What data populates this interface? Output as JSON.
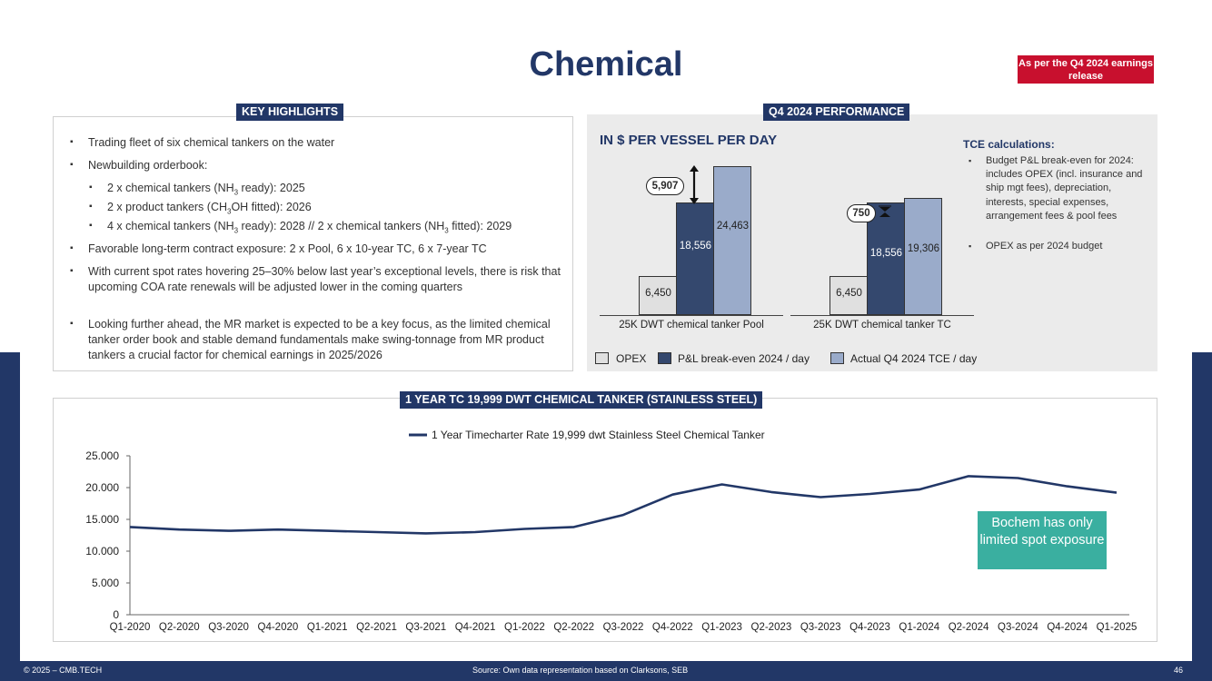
{
  "title": "Chemical",
  "badge": "As per the Q4 2024 earnings release",
  "key_highlights": {
    "tag": "KEY HIGHLIGHTS",
    "items": [
      "Trading fleet of six chemical tankers on the water",
      "Newbuilding orderbook:",
      "Favorable long-term contract exposure: 2 x Pool, 6 x 10-year TC, 6 x 7-year TC",
      "With current spot rates hovering 25–30% below last year’s exceptional levels, there is risk that upcoming COA rate renewals will be adjusted lower in the coming quarters",
      "Looking further ahead, the MR market is expected to be a key focus, as the limited chemical tanker order book and stable demand fundamentals make swing-tonnage from MR product tankers a crucial factor for chemical earnings in 2025/2026"
    ],
    "sub_items": {
      "a_pre": "2 x chemical tankers (NH",
      "a_sub": "3",
      "a_post": " ready): 2025",
      "b_pre": "2 x product tankers (CH",
      "b_sub": "3",
      "b_post": "OH fitted): 2026",
      "c_pre": "4 x chemical tankers (NH",
      "c_sub": "3",
      "c_mid": " ready): 2028 // 2 x chemical tankers (NH",
      "c_sub2": "3",
      "c_post": " fitted): 2029"
    }
  },
  "performance": {
    "tag": "Q4 2024 PERFORMANCE",
    "chart_title": "IN $ PER VESSEL PER DAY",
    "tce_title": "TCE calculations:",
    "tce_items": [
      "Budget P&L break-even for 2024: includes OPEX (incl. insurance and ship mgt fees), depreciation, interests, special expenses, arrangement fees & pool fees",
      "OPEX as per 2024 budget"
    ],
    "legend": [
      "OPEX",
      "P&L break-even 2024 / day",
      "Actual Q4 2024 TCE / day"
    ],
    "diff_labels": [
      "5,907",
      "750"
    ],
    "colors": {
      "opex": "#e0e0e0",
      "pl": "#34486e",
      "tce": "#9aabca"
    }
  },
  "chart_data": [
    {
      "type": "bar",
      "title": "IN $ PER VESSEL PER DAY",
      "categories": [
        "25K DWT chemical tanker Pool",
        "25K DWT chemical tanker TC"
      ],
      "series": [
        {
          "name": "OPEX",
          "values": [
            6450,
            6450
          ],
          "labels": [
            "6,450",
            "6,450"
          ]
        },
        {
          "name": "P&L break-even 2024 / day",
          "values": [
            18556,
            18556
          ],
          "labels": [
            "18,556",
            "18,556"
          ]
        },
        {
          "name": "Actual Q4 2024 TCE / day",
          "values": [
            24463,
            19306
          ],
          "labels": [
            "24,463",
            "19,306"
          ]
        }
      ],
      "ylim": [
        0,
        26000
      ]
    },
    {
      "type": "line",
      "title": "1 YEAR TC 19,999 DWT CHEMICAL TANKER (STAINLESS STEEL)",
      "legend": "1 Year Timecharter Rate 19,999 dwt Stainless Steel Chemical Tanker",
      "x": [
        "Q1-2020",
        "Q2-2020",
        "Q3-2020",
        "Q4-2020",
        "Q1-2021",
        "Q2-2021",
        "Q3-2021",
        "Q4-2021",
        "Q1-2022",
        "Q2-2022",
        "Q3-2022",
        "Q4-2022",
        "Q1-2023",
        "Q2-2023",
        "Q3-2023",
        "Q4-2023",
        "Q1-2024",
        "Q2-2024",
        "Q3-2024",
        "Q4-2024",
        "Q1-2025"
      ],
      "series": [
        {
          "name": "1 Year Timecharter Rate 19,999 dwt Stainless Steel Chemical Tanker",
          "values": [
            13800,
            13400,
            13200,
            13400,
            13200,
            13000,
            12800,
            13000,
            13500,
            13800,
            15700,
            18900,
            20500,
            19300,
            18500,
            19000,
            19700,
            21800,
            21500,
            20200,
            19200
          ]
        }
      ],
      "yticks": [
        "25.000",
        "20.000",
        "15.000",
        "10.000",
        "5.000",
        "0"
      ],
      "ytick_values": [
        25000,
        20000,
        15000,
        10000,
        5000,
        0
      ],
      "ylim": [
        0,
        25000
      ],
      "color": "#223767"
    }
  ],
  "line_tag": "1 YEAR TC 19,999 DWT CHEMICAL TANKER (STAINLESS STEEL)",
  "teal_note": "Bochem has only limited spot exposure",
  "footer": {
    "copyright": "© 2025 – CMB.TECH",
    "source": "Source:  Own data representation based on Clarksons, SEB",
    "page": "46"
  }
}
